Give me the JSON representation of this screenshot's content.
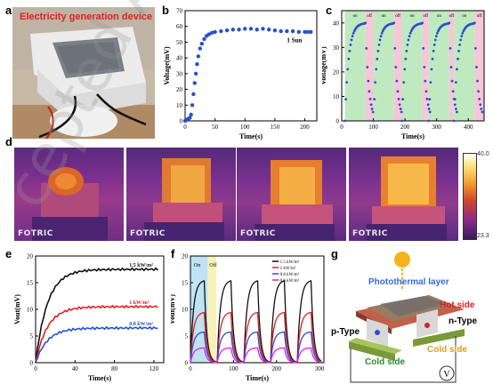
{
  "panels": {
    "a": {
      "letter": "a",
      "label": "Electricity generation device"
    },
    "b": {
      "letter": "b"
    },
    "c": {
      "letter": "c"
    },
    "d": {
      "letter": "d",
      "brand": "FOTRIC",
      "scale_max": "40.0",
      "scale_min": "23.3"
    },
    "e": {
      "letter": "e"
    },
    "f": {
      "letter": "f"
    },
    "g": {
      "letter": "g",
      "labels": {
        "photothermal": "Photothermal layer",
        "hot_side": "Hot side",
        "p_type": "p-Type",
        "n_type": "n-Type",
        "cold_side_left": "Cold side",
        "cold_side_right": "Cold side",
        "meter": "V"
      }
    }
  },
  "watermark": "cepted Article",
  "chart_data": [
    {
      "panel": "b",
      "type": "scatter",
      "xlabel": "Time(s)",
      "ylabel": "Voltage(mV)",
      "xlim": [
        0,
        220
      ],
      "ylim": [
        0,
        70
      ],
      "xticks": [
        0,
        50,
        100,
        150,
        200
      ],
      "yticks": [
        0,
        10,
        20,
        30,
        40,
        50,
        60,
        70
      ],
      "annotation": "1 Sun",
      "x": [
        0,
        2,
        4,
        6,
        8,
        10,
        12,
        14,
        16,
        18,
        20,
        22,
        25,
        28,
        32,
        36,
        40,
        45,
        50,
        60,
        70,
        80,
        90,
        100,
        110,
        120,
        130,
        140,
        150,
        160,
        170,
        180,
        190,
        200,
        205,
        210
      ],
      "y": [
        0,
        0.5,
        1,
        1.5,
        2,
        4,
        10,
        17,
        24,
        30,
        36,
        41,
        46,
        49,
        52,
        54,
        55,
        56,
        56.5,
        57,
        57.5,
        58,
        58,
        58.5,
        58.5,
        58,
        58.5,
        58,
        57.5,
        57,
        57,
        57,
        56.5,
        56.5,
        56.5,
        56.5
      ]
    },
    {
      "panel": "c",
      "type": "scatter",
      "xlabel": "Time(s)",
      "ylabel": "Voltage(mV)",
      "xlim": [
        0,
        450
      ],
      "ylim": [
        0,
        45
      ],
      "xticks": [
        0,
        100,
        200,
        300,
        400
      ],
      "yticks": [
        0,
        10,
        20,
        30,
        40
      ],
      "band_labels": [
        "on",
        "off",
        "on",
        "off",
        "on",
        "off",
        "on",
        "off",
        "on",
        "off"
      ],
      "cycles": [
        [
          10,
          75
        ],
        [
          100,
          165
        ],
        [
          190,
          255
        ],
        [
          275,
          340
        ],
        [
          355,
          420
        ]
      ]
    },
    {
      "panel": "e",
      "type": "line",
      "xlabel": "Time(s)",
      "ylabel": "Vout(mV)",
      "xlim": [
        0,
        130
      ],
      "ylim": [
        0,
        20
      ],
      "xticks": [
        0,
        40,
        80,
        120
      ],
      "yticks": [
        0,
        5,
        10,
        15,
        20
      ],
      "series": [
        {
          "name": "1.5 kW/m²",
          "plateau": 17.5,
          "color": "#111111"
        },
        {
          "name": "1 kW/m²",
          "plateau": 10.5,
          "color": "#e02020"
        },
        {
          "name": "0.8 kW/m²",
          "plateau": 6.5,
          "color": "#2a4fd0"
        }
      ]
    },
    {
      "panel": "f",
      "type": "line",
      "xlabel": "Time(s)",
      "ylabel": "Vout(mV)",
      "xlim": [
        0,
        310
      ],
      "ylim": [
        0,
        20
      ],
      "xticks": [
        0,
        100,
        200,
        300
      ],
      "yticks": [
        0,
        5,
        10,
        15,
        20
      ],
      "band_labels": [
        "On",
        "Off"
      ],
      "series": [
        {
          "name": "1.5 kW/m²",
          "plateau": 15.5,
          "color": "#111111"
        },
        {
          "name": "1 kW/m²",
          "plateau": 9.5,
          "color": "#e02020"
        },
        {
          "name": "0.8 kW/m²",
          "plateau": 5.8,
          "color": "#2a4fd0"
        },
        {
          "name": "0.6 kW/m²",
          "plateau": 2.8,
          "color": "#e020e0"
        }
      ]
    }
  ]
}
